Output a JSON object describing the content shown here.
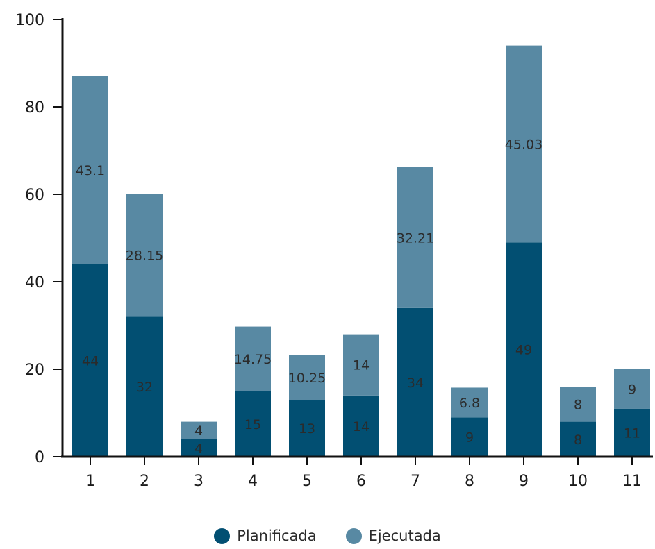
{
  "colors": {
    "planned": "#024f72",
    "executed": "#5889a3",
    "axis": "#111111"
  },
  "chart_data": {
    "type": "bar",
    "stacked": true,
    "categories": [
      "1",
      "2",
      "3",
      "4",
      "5",
      "6",
      "7",
      "8",
      "9",
      "10",
      "11"
    ],
    "series": [
      {
        "name": "Planificada",
        "values": [
          44,
          32,
          4,
          15,
          13,
          14,
          34,
          9,
          49,
          8,
          11
        ]
      },
      {
        "name": "Ejecutada",
        "values": [
          43.1,
          28.15,
          4,
          14.75,
          10.25,
          14,
          32.21,
          6.8,
          45.03,
          8,
          9
        ]
      }
    ],
    "y_ticks": [
      "0",
      "20",
      "40",
      "60",
      "80",
      "100"
    ],
    "ylim": [
      0,
      100
    ],
    "grid": false,
    "legend_position": "bottom-center"
  },
  "legend": {
    "planned_label": "Planificada",
    "executed_label": "Ejecutada"
  }
}
